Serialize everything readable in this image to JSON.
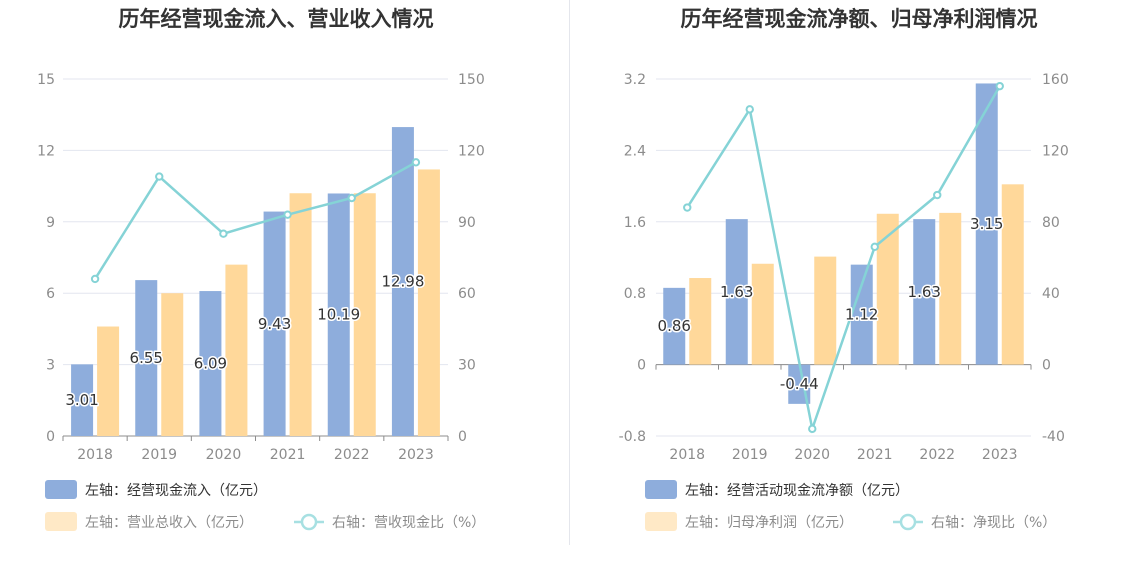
{
  "chart_data": [
    {
      "type": "bar",
      "title": "历年经营现金流入、营业收入情况",
      "categories": [
        "2018",
        "2019",
        "2020",
        "2021",
        "2022",
        "2023"
      ],
      "left_axis": {
        "ticks": [
          "0",
          "3",
          "6",
          "9",
          "12",
          "15"
        ],
        "min": 0,
        "max": 15
      },
      "right_axis": {
        "ticks": [
          "0",
          "30",
          "60",
          "90",
          "120",
          "150"
        ],
        "min": 0,
        "max": 150
      },
      "series": [
        {
          "name": "左轴：经营现金流入（亿元）",
          "kind": "bar",
          "axis": "left",
          "color": "#8eaddc",
          "values": [
            3.01,
            6.55,
            6.09,
            9.43,
            10.19,
            12.98
          ],
          "labels": [
            "3.01",
            "6.55",
            "6.09",
            "9.43",
            "10.19",
            "12.98"
          ]
        },
        {
          "name": "左轴：营业总收入（亿元）",
          "kind": "bar",
          "axis": "left",
          "color": "#ffd89a",
          "values": [
            4.6,
            6.0,
            7.2,
            10.2,
            10.2,
            11.2
          ]
        },
        {
          "name": "右轴：营收现金比（%）",
          "kind": "line",
          "axis": "right",
          "color": "#85d3d6",
          "values": [
            66,
            109,
            85,
            93,
            100,
            115
          ]
        }
      ],
      "legend_placement": "bottom-left",
      "grid": true
    },
    {
      "type": "bar",
      "title": "历年经营现金流净额、归母净利润情况",
      "categories": [
        "2018",
        "2019",
        "2020",
        "2021",
        "2022",
        "2023"
      ],
      "left_axis": {
        "ticks": [
          "-0.8",
          "0",
          "0.8",
          "1.6",
          "2.4",
          "3.2"
        ],
        "min": -0.8,
        "max": 3.2
      },
      "right_axis": {
        "ticks": [
          "-40",
          "0",
          "40",
          "80",
          "120",
          "160"
        ],
        "min": -40,
        "max": 160
      },
      "series": [
        {
          "name": "左轴：经营活动现金流净额（亿元）",
          "kind": "bar",
          "axis": "left",
          "color": "#8eaddc",
          "values": [
            0.86,
            1.63,
            -0.44,
            1.12,
            1.63,
            3.15
          ],
          "labels": [
            "0.86",
            "1.63",
            "-0.44",
            "1.12",
            "1.63",
            "3.15"
          ]
        },
        {
          "name": "左轴：归母净利润（亿元）",
          "kind": "bar",
          "axis": "left",
          "color": "#ffd89a",
          "values": [
            0.97,
            1.13,
            1.21,
            1.69,
            1.7,
            2.02
          ]
        },
        {
          "name": "右轴：净现比（%）",
          "kind": "line",
          "axis": "right",
          "color": "#85d3d6",
          "values": [
            88,
            143,
            -36,
            66,
            95,
            156
          ]
        }
      ],
      "legend_placement": "bottom-left",
      "grid": true
    }
  ]
}
